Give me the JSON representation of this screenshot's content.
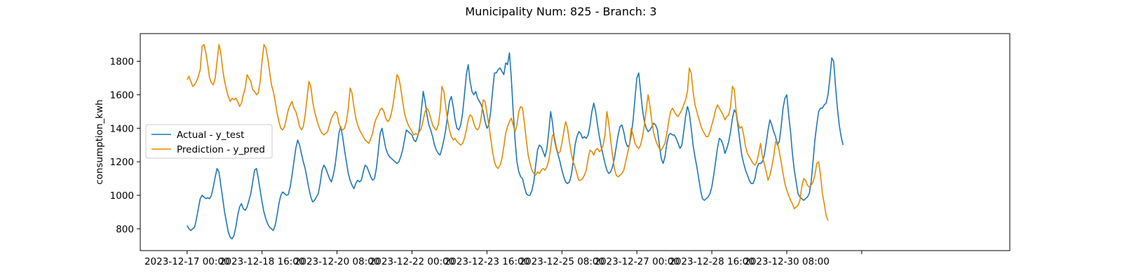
{
  "chart_data": {
    "type": "line",
    "title": "Municipality Num: 825 - Branch: 3",
    "xlabel": "",
    "ylabel": "consumption_kwh",
    "ylim": [
      670,
      1965
    ],
    "yticks": [
      800,
      1000,
      1200,
      1400,
      1600,
      1800
    ],
    "xlim": [
      -25,
      439
    ],
    "xticks": [
      {
        "x": 0,
        "label": "2023-12-17 00:00"
      },
      {
        "x": 40,
        "label": "2023-12-18 16:00"
      },
      {
        "x": 80,
        "label": "2023-12-20 08:00"
      },
      {
        "x": 120,
        "label": "2023-12-22 00:00"
      },
      {
        "x": 160,
        "label": "2023-12-23 16:00"
      },
      {
        "x": 200,
        "label": "2023-12-25 08:00"
      },
      {
        "x": 240,
        "label": "2023-12-27 00:00"
      },
      {
        "x": 280,
        "label": "2023-12-28 16:00"
      },
      {
        "x": 320,
        "label": "2023-12-30 08:00"
      },
      {
        "x": 360,
        "label": ""
      }
    ],
    "x_step": 1,
    "grid": false,
    "legend_position": "center-left",
    "series": [
      {
        "name": "Actual - y_test",
        "color": "#1f77b4",
        "values": [
          820,
          800,
          790,
          800,
          810,
          860,
          920,
          980,
          1000,
          990,
          980,
          985,
          980,
          1000,
          1050,
          1110,
          1160,
          1140,
          1060,
          980,
          900,
          840,
          780,
          750,
          740,
          760,
          810,
          880,
          930,
          950,
          920,
          910,
          930,
          970,
          1010,
          1080,
          1150,
          1160,
          1100,
          1030,
          960,
          900,
          860,
          830,
          810,
          800,
          790,
          820,
          880,
          950,
          1000,
          1020,
          1010,
          1000,
          1005,
          1050,
          1120,
          1200,
          1280,
          1330,
          1300,
          1250,
          1200,
          1160,
          1100,
          1040,
          990,
          960,
          970,
          990,
          1010,
          1070,
          1150,
          1180,
          1160,
          1130,
          1100,
          1080,
          1120,
          1180,
          1270,
          1370,
          1410,
          1350,
          1270,
          1200,
          1130,
          1090,
          1060,
          1040,
          1070,
          1090,
          1080,
          1090,
          1140,
          1180,
          1170,
          1140,
          1110,
          1090,
          1100,
          1160,
          1260,
          1370,
          1400,
          1340,
          1280,
          1250,
          1230,
          1220,
          1210,
          1200,
          1190,
          1200,
          1230,
          1270,
          1330,
          1390,
          1380,
          1370,
          1360,
          1330,
          1320,
          1350,
          1400,
          1510,
          1620,
          1560,
          1480,
          1420,
          1390,
          1350,
          1300,
          1270,
          1250,
          1240,
          1280,
          1330,
          1390,
          1480,
          1560,
          1590,
          1530,
          1450,
          1400,
          1390,
          1420,
          1490,
          1600,
          1720,
          1780,
          1680,
          1620,
          1600,
          1620,
          1580,
          1560,
          1540,
          1500,
          1440,
          1400,
          1420,
          1500,
          1620,
          1730,
          1730,
          1750,
          1760,
          1740,
          1720,
          1790,
          1780,
          1850,
          1700,
          1500,
          1330,
          1200,
          1140,
          1110,
          1100,
          1050,
          1010,
          1000,
          1000,
          1030,
          1080,
          1180,
          1270,
          1300,
          1290,
          1260,
          1230,
          1280,
          1380,
          1500,
          1430,
          1330,
          1280,
          1240,
          1200,
          1150,
          1110,
          1080,
          1070,
          1080,
          1120,
          1200,
          1300,
          1350,
          1380,
          1370,
          1340,
          1350,
          1340,
          1360,
          1420,
          1500,
          1550,
          1500,
          1420,
          1350,
          1290,
          1240,
          1190,
          1150,
          1130,
          1140,
          1170,
          1220,
          1290,
          1360,
          1410,
          1420,
          1380,
          1320,
          1290,
          1300,
          1360,
          1450,
          1580,
          1700,
          1730,
          1620,
          1510,
          1440,
          1400,
          1380,
          1390,
          1410,
          1430,
          1420,
          1390,
          1300,
          1220,
          1190,
          1230,
          1310,
          1360,
          1370,
          1360,
          1360,
          1340,
          1310,
          1280,
          1300,
          1380,
          1470,
          1530,
          1490,
          1400,
          1300,
          1230,
          1170,
          1100,
          1030,
          980,
          970,
          980,
          990,
          1010,
          1050,
          1120,
          1200,
          1280,
          1340,
          1330,
          1300,
          1250,
          1280,
          1320,
          1380,
          1460,
          1510,
          1490,
          1410,
          1320,
          1240,
          1190,
          1150,
          1120,
          1090,
          1070,
          1070,
          1100,
          1160,
          1190,
          1190,
          1200,
          1240,
          1310,
          1390,
          1450,
          1420,
          1380,
          1350,
          1300,
          1320,
          1410,
          1520,
          1580,
          1600,
          1480,
          1380,
          1250,
          1150,
          1080,
          1010,
          990,
          980,
          970,
          980,
          990,
          1010,
          1080,
          1200,
          1330,
          1420,
          1500,
          1520,
          1520,
          1540,
          1550,
          1600,
          1700,
          1820,
          1800,
          1650,
          1520,
          1420,
          1350,
          1300
        ]
      },
      {
        "name": "Prediction - y_pred",
        "color": "#e08b00",
        "values": [
          1690,
          1710,
          1680,
          1650,
          1660,
          1680,
          1710,
          1750,
          1890,
          1900,
          1850,
          1780,
          1700,
          1670,
          1660,
          1700,
          1800,
          1900,
          1850,
          1750,
          1680,
          1630,
          1590,
          1560,
          1580,
          1570,
          1580,
          1560,
          1530,
          1550,
          1600,
          1640,
          1720,
          1700,
          1680,
          1630,
          1620,
          1600,
          1610,
          1680,
          1800,
          1900,
          1880,
          1820,
          1740,
          1660,
          1620,
          1560,
          1490,
          1440,
          1400,
          1390,
          1410,
          1460,
          1510,
          1540,
          1560,
          1520,
          1500,
          1460,
          1410,
          1390,
          1410,
          1480,
          1580,
          1680,
          1650,
          1560,
          1500,
          1460,
          1420,
          1390,
          1370,
          1360,
          1370,
          1380,
          1420,
          1460,
          1480,
          1500,
          1490,
          1430,
          1400,
          1390,
          1400,
          1440,
          1520,
          1640,
          1610,
          1530,
          1460,
          1420,
          1390,
          1370,
          1350,
          1330,
          1320,
          1310,
          1340,
          1370,
          1430,
          1460,
          1480,
          1510,
          1520,
          1500,
          1460,
          1440,
          1450,
          1490,
          1550,
          1630,
          1720,
          1700,
          1640,
          1560,
          1490,
          1450,
          1420,
          1400,
          1380,
          1360,
          1370,
          1360,
          1380,
          1400,
          1450,
          1500,
          1520,
          1500,
          1460,
          1420,
          1400,
          1390,
          1420,
          1500,
          1650,
          1620,
          1530,
          1450,
          1390,
          1350,
          1330,
          1340,
          1320,
          1310,
          1300,
          1310,
          1340,
          1390,
          1450,
          1480,
          1470,
          1430,
          1400,
          1390,
          1410,
          1470,
          1570,
          1560,
          1490,
          1420,
          1340,
          1260,
          1200,
          1170,
          1160,
          1180,
          1220,
          1290,
          1370,
          1410,
          1440,
          1460,
          1420,
          1380,
          1420,
          1500,
          1530,
          1520,
          1430,
          1330,
          1240,
          1190,
          1150,
          1130,
          1120,
          1140,
          1130,
          1150,
          1160,
          1150,
          1170,
          1210,
          1280,
          1360,
          1350,
          1290,
          1250,
          1260,
          1310,
          1380,
          1440,
          1400,
          1320,
          1250,
          1200,
          1170,
          1130,
          1090,
          1090,
          1100,
          1120,
          1150,
          1220,
          1270,
          1260,
          1240,
          1270,
          1280,
          1260,
          1270,
          1300,
          1360,
          1500,
          1430,
          1330,
          1240,
          1160,
          1120,
          1110,
          1120,
          1130,
          1150,
          1200,
          1250,
          1300,
          1400,
          1360,
          1310,
          1290,
          1280,
          1300,
          1350,
          1420,
          1510,
          1600,
          1530,
          1440,
          1370,
          1330,
          1300,
          1280,
          1270,
          1290,
          1310,
          1370,
          1440,
          1500,
          1520,
          1500,
          1480,
          1470,
          1490,
          1510,
          1540,
          1570,
          1620,
          1760,
          1730,
          1620,
          1540,
          1500,
          1460,
          1420,
          1390,
          1370,
          1350,
          1350,
          1380,
          1420,
          1460,
          1510,
          1540,
          1520,
          1500,
          1480,
          1450,
          1470,
          1480,
          1530,
          1650,
          1630,
          1500,
          1430,
          1400,
          1410,
          1360,
          1290,
          1250,
          1230,
          1210,
          1190,
          1180,
          1200,
          1250,
          1310,
          1230,
          1190,
          1140,
          1090,
          1120,
          1170,
          1230,
          1320,
          1320,
          1260,
          1200,
          1130,
          1070,
          1030,
          1000,
          970,
          950,
          920,
          930,
          940,
          970,
          1050,
          1100,
          1090,
          1060,
          1050,
          1060,
          1080,
          1120,
          1190,
          1200,
          1120,
          1010,
          950,
          880,
          850
        ]
      }
    ]
  }
}
